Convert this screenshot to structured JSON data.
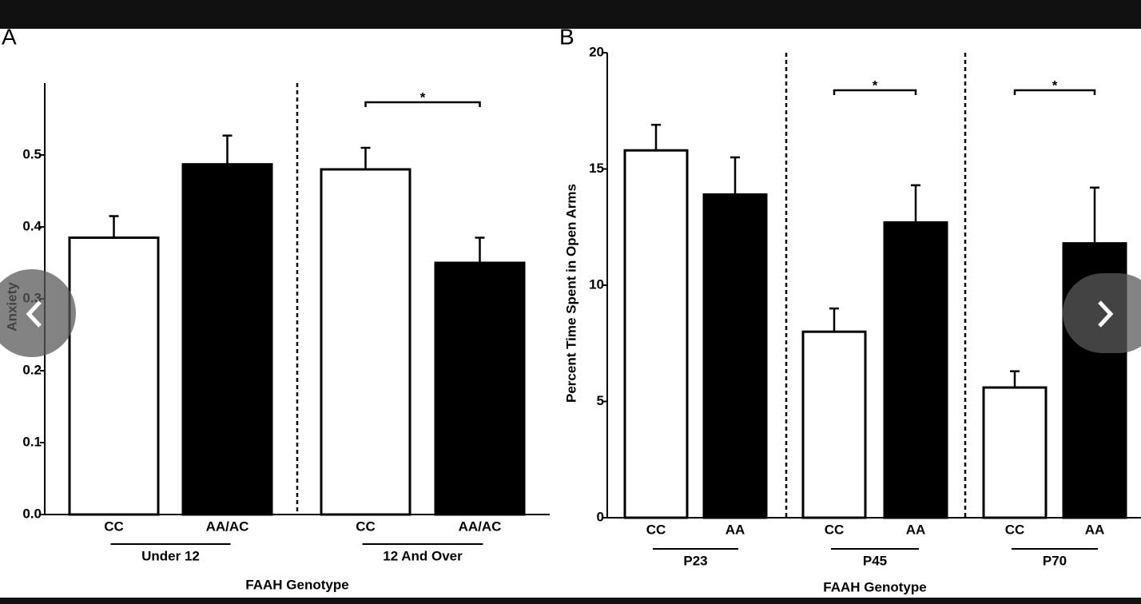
{
  "chart_data": [
    {
      "type": "bar",
      "panel": "A",
      "y_label": "Anxiety",
      "x_label": "FAAH Genotype",
      "categories": [
        "CC",
        "AA/AC",
        "CC",
        "AA/AC"
      ],
      "values": [
        0.385,
        0.487,
        0.48,
        0.35
      ],
      "errors": [
        0.03,
        0.04,
        0.03,
        0.035
      ],
      "colors": [
        "#ffffff",
        "#000000",
        "#ffffff",
        "#000000"
      ],
      "groups": [
        {
          "name": "Under 12"
        },
        {
          "name": "12 And Over",
          "annotation": "*"
        }
      ],
      "ylim": [
        0,
        0.6
      ],
      "yticks": [
        {
          "value": 0,
          "label": "0.0"
        },
        0.1,
        0.2,
        0.3,
        0.4,
        0.5
      ]
    },
    {
      "type": "bar",
      "panel": "B",
      "y_label": "Percent Time Spent in Open Arms",
      "x_label": "FAAH Genotype",
      "categories": [
        "CC",
        "AA",
        "CC",
        "AA",
        "CC",
        "AA"
      ],
      "values": [
        15.8,
        13.9,
        8.0,
        12.7,
        5.6,
        11.8
      ],
      "errors": [
        1.1,
        1.6,
        1.0,
        1.6,
        0.7,
        2.4
      ],
      "colors": [
        "#ffffff",
        "#000000",
        "#ffffff",
        "#000000",
        "#ffffff",
        "#000000"
      ],
      "groups": [
        {
          "name": "P23"
        },
        {
          "name": "P45",
          "annotation": "*"
        },
        {
          "name": "P70",
          "annotation": "*"
        }
      ],
      "ylim": [
        0,
        20
      ],
      "yticks": [
        0,
        5,
        10,
        15,
        20
      ]
    }
  ]
}
